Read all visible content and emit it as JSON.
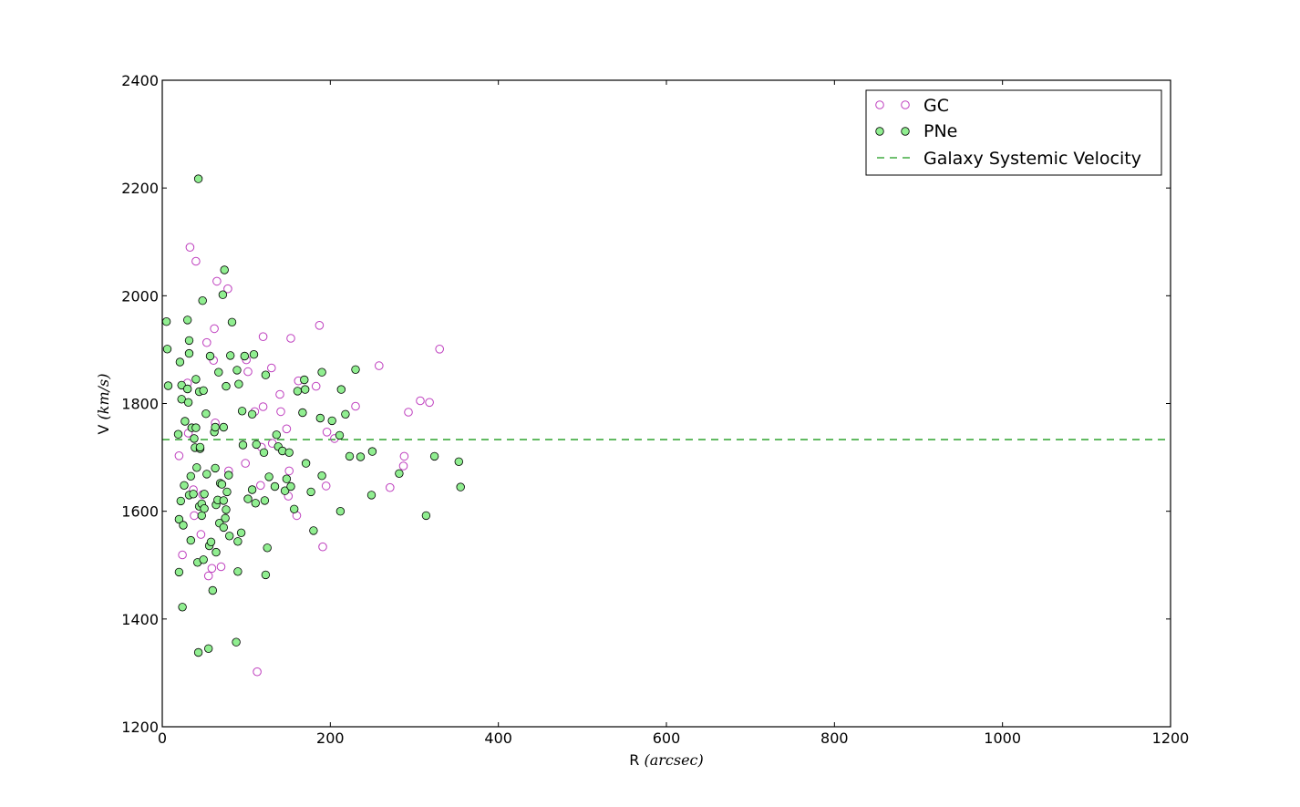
{
  "chart_data": {
    "type": "scatter",
    "title": "",
    "xlabel_prefix": "R",
    "xlabel_unit": "(arcsec)",
    "ylabel_prefix": "V",
    "ylabel_unit": "(km/s)",
    "xlim": [
      0,
      1200
    ],
    "ylim": [
      1200,
      2400
    ],
    "xticks": [
      "0",
      "200",
      "400",
      "600",
      "800",
      "1000",
      "1200"
    ],
    "yticks": [
      "1200",
      "1400",
      "1600",
      "1800",
      "2000",
      "2200",
      "2400"
    ],
    "grid": false,
    "legend_position": "upper-right",
    "systemic_velocity": 1733,
    "series": [
      {
        "name": "GC",
        "marker": "open-circle",
        "color": "#bf40bf",
        "points": [
          [
            20,
            1703
          ],
          [
            24,
            1519
          ],
          [
            30,
            1838
          ],
          [
            31,
            1745
          ],
          [
            33,
            2090
          ],
          [
            37,
            1640
          ],
          [
            38,
            1592
          ],
          [
            40,
            2064
          ],
          [
            46,
            1557
          ],
          [
            48,
            1631
          ],
          [
            53,
            1913
          ],
          [
            55,
            1480
          ],
          [
            59,
            1494
          ],
          [
            61,
            1880
          ],
          [
            62,
            1939
          ],
          [
            63,
            1764
          ],
          [
            65,
            2027
          ],
          [
            70,
            1497
          ],
          [
            78,
            2013
          ],
          [
            79,
            1675
          ],
          [
            99,
            1689
          ],
          [
            100,
            1881
          ],
          [
            102,
            1859
          ],
          [
            110,
            1785
          ],
          [
            113,
            1302
          ],
          [
            117,
            1648
          ],
          [
            118,
            1719
          ],
          [
            120,
            1924
          ],
          [
            120,
            1794
          ],
          [
            130,
            1866
          ],
          [
            131,
            1726
          ],
          [
            140,
            1817
          ],
          [
            141,
            1785
          ],
          [
            148,
            1753
          ],
          [
            150,
            1628
          ],
          [
            151,
            1675
          ],
          [
            153,
            1921
          ],
          [
            160,
            1592
          ],
          [
            162,
            1842
          ],
          [
            183,
            1832
          ],
          [
            187,
            1945
          ],
          [
            191,
            1534
          ],
          [
            195,
            1647
          ],
          [
            196,
            1747
          ],
          [
            205,
            1735
          ],
          [
            230,
            1795
          ],
          [
            258,
            1870
          ],
          [
            271,
            1644
          ],
          [
            287,
            1684
          ],
          [
            288,
            1702
          ],
          [
            293,
            1784
          ],
          [
            307,
            1805
          ],
          [
            318,
            1802
          ],
          [
            330,
            1901
          ]
        ]
      },
      {
        "name": "PNe",
        "marker": "filled-circle",
        "color": "#90ee90",
        "points": [
          [
            5,
            1952
          ],
          [
            6,
            1901
          ],
          [
            7,
            1833
          ],
          [
            19,
            1743
          ],
          [
            20,
            1585
          ],
          [
            20,
            1487
          ],
          [
            21,
            1877
          ],
          [
            22,
            1619
          ],
          [
            23,
            1834
          ],
          [
            23,
            1808
          ],
          [
            24,
            1422
          ],
          [
            25,
            1574
          ],
          [
            26,
            1648
          ],
          [
            27,
            1767
          ],
          [
            30,
            1955
          ],
          [
            30,
            1827
          ],
          [
            31,
            1802
          ],
          [
            32,
            1917
          ],
          [
            32,
            1630
          ],
          [
            32,
            1893
          ],
          [
            34,
            1665
          ],
          [
            34,
            1546
          ],
          [
            35,
            1755
          ],
          [
            37,
            1632
          ],
          [
            38,
            1735
          ],
          [
            39,
            1718
          ],
          [
            40,
            1845
          ],
          [
            40,
            1755
          ],
          [
            41,
            1681
          ],
          [
            42,
            1505
          ],
          [
            43,
            2217
          ],
          [
            43,
            1338
          ],
          [
            44,
            1822
          ],
          [
            44,
            1609
          ],
          [
            45,
            1716
          ],
          [
            45,
            1719
          ],
          [
            47,
            1592
          ],
          [
            47,
            1614
          ],
          [
            48,
            1991
          ],
          [
            49,
            1510
          ],
          [
            49,
            1824
          ],
          [
            50,
            1605
          ],
          [
            50,
            1632
          ],
          [
            52,
            1781
          ],
          [
            53,
            1669
          ],
          [
            55,
            1345
          ],
          [
            56,
            1536
          ],
          [
            57,
            1888
          ],
          [
            58,
            1543
          ],
          [
            60,
            1453
          ],
          [
            62,
            1747
          ],
          [
            63,
            1680
          ],
          [
            63,
            1756
          ],
          [
            64,
            1612
          ],
          [
            64,
            1524
          ],
          [
            66,
            1621
          ],
          [
            67,
            1858
          ],
          [
            68,
            1578
          ],
          [
            69,
            1652
          ],
          [
            71,
            1650
          ],
          [
            72,
            2002
          ],
          [
            73,
            1756
          ],
          [
            73,
            1620
          ],
          [
            73,
            1570
          ],
          [
            74,
            2048
          ],
          [
            75,
            1587
          ],
          [
            76,
            1832
          ],
          [
            76,
            1603
          ],
          [
            77,
            1636
          ],
          [
            79,
            1667
          ],
          [
            80,
            1554
          ],
          [
            81,
            1889
          ],
          [
            83,
            1951
          ],
          [
            88,
            1357
          ],
          [
            89,
            1862
          ],
          [
            90,
            1488
          ],
          [
            90,
            1544
          ],
          [
            91,
            1836
          ],
          [
            94,
            1560
          ],
          [
            95,
            1786
          ],
          [
            96,
            1723
          ],
          [
            98,
            1888
          ],
          [
            102,
            1623
          ],
          [
            107,
            1780
          ],
          [
            107,
            1640
          ],
          [
            109,
            1891
          ],
          [
            111,
            1615
          ],
          [
            112,
            1724
          ],
          [
            121,
            1709
          ],
          [
            122,
            1620
          ],
          [
            123,
            1853
          ],
          [
            123,
            1482
          ],
          [
            125,
            1532
          ],
          [
            127,
            1664
          ],
          [
            134,
            1646
          ],
          [
            136,
            1742
          ],
          [
            138,
            1720
          ],
          [
            143,
            1712
          ],
          [
            146,
            1638
          ],
          [
            148,
            1660
          ],
          [
            151,
            1709
          ],
          [
            153,
            1646
          ],
          [
            157,
            1604
          ],
          [
            161,
            1823
          ],
          [
            167,
            1783
          ],
          [
            169,
            1844
          ],
          [
            170,
            1826
          ],
          [
            171,
            1689
          ],
          [
            177,
            1636
          ],
          [
            180,
            1564
          ],
          [
            188,
            1773
          ],
          [
            190,
            1858
          ],
          [
            190,
            1666
          ],
          [
            202,
            1768
          ],
          [
            211,
            1741
          ],
          [
            212,
            1600
          ],
          [
            213,
            1826
          ],
          [
            218,
            1780
          ],
          [
            223,
            1702
          ],
          [
            230,
            1863
          ],
          [
            236,
            1701
          ],
          [
            249,
            1630
          ],
          [
            250,
            1711
          ],
          [
            282,
            1670
          ],
          [
            324,
            1702
          ],
          [
            353,
            1692
          ],
          [
            355,
            1645
          ],
          [
            314,
            1592
          ]
        ]
      }
    ],
    "reference_line": {
      "name": "Galaxy Systemic Velocity",
      "style": "dashed",
      "color": "#1a9a1a"
    }
  }
}
